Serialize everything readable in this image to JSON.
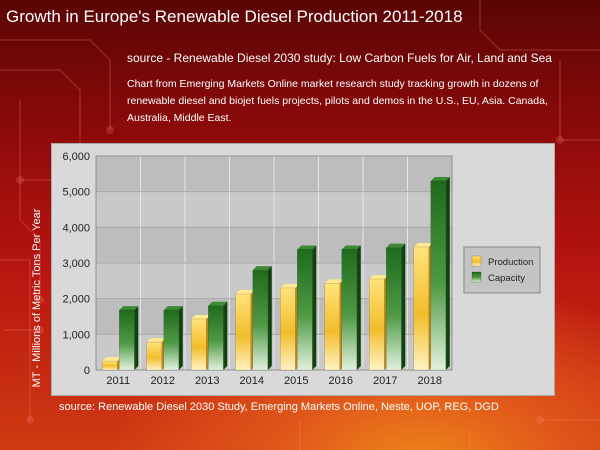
{
  "header": {
    "title": "Growth in Europe's Renewable Diesel Production 2011-2018",
    "source": "source - Renewable Diesel 2030 study: Low Carbon Fuels for Air, Land and Sea",
    "description": "Chart from Emerging Markets Online market research study tracking growth in dozens of renewable diesel and biojet fuels projects, pilots and demos in the U.S., EU, Asia. Canada, Australia, Middle East."
  },
  "footer": {
    "source": "source: Renewable Diesel 2030 Study, Emerging Markets Online, Neste, UOP, REG, DGD"
  },
  "chart_data": {
    "type": "bar",
    "categories": [
      "2011",
      "2012",
      "2013",
      "2014",
      "2015",
      "2016",
      "2017",
      "2018"
    ],
    "series": [
      {
        "name": "Production",
        "values": [
          250,
          780,
          1430,
          2130,
          2300,
          2430,
          2550,
          3450
        ],
        "color": "#f2c12e"
      },
      {
        "name": "Capacity",
        "values": [
          1680,
          1680,
          1800,
          2800,
          3380,
          3380,
          3430,
          5300
        ],
        "color": "#2e7d2a"
      }
    ],
    "ylabel": "MT - Millions of Metric Tons Per Year",
    "ylim": [
      0,
      6000
    ],
    "yticks": [
      0,
      1000,
      2000,
      3000,
      4000,
      5000,
      6000
    ],
    "ytick_labels": [
      "0",
      "1,000",
      "2,000",
      "3,000",
      "4,000",
      "5,000",
      "6,000"
    ],
    "legend_position": "right",
    "grid": true
  }
}
